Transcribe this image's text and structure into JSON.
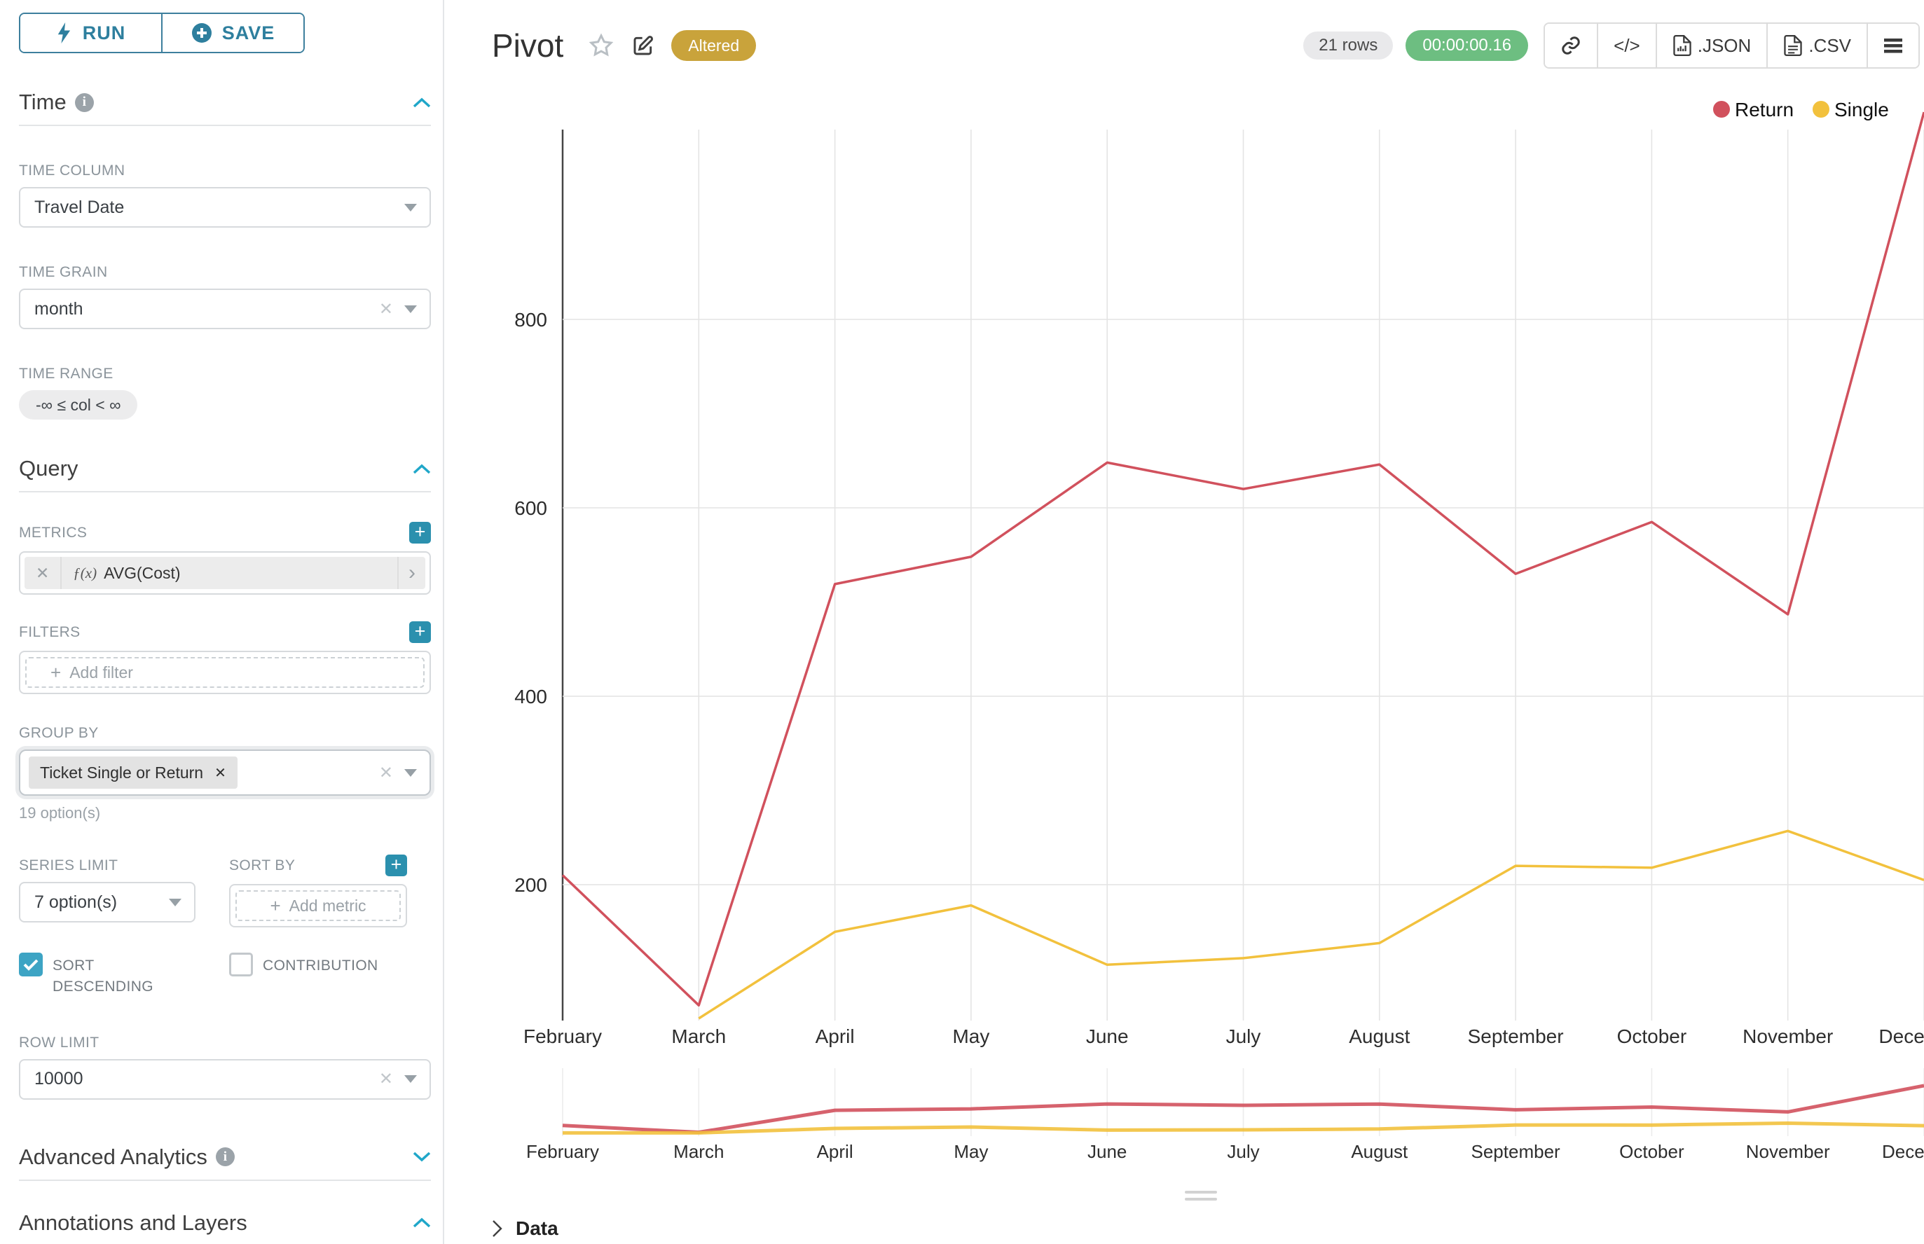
{
  "colors": {
    "accent_teal": "#2b90ae",
    "button_teal": "#2e7f9e",
    "chevron_teal": "#20a7c9",
    "badge_gold": "#c9a33b",
    "badge_green": "#6dbe81",
    "return_red": "#d1515d",
    "single_yellow": "#f2c13d"
  },
  "icons": {
    "plus": "+",
    "close": "✕",
    "code_glyph": "</>"
  },
  "sidebar": {
    "run_label": "RUN",
    "save_label": "SAVE",
    "time": {
      "title": "Time",
      "column_label": "TIME COLUMN",
      "column_value": "Travel Date",
      "grain_label": "TIME GRAIN",
      "grain_value": "month",
      "range_label": "TIME RANGE",
      "range_value": "-∞ ≤ col < ∞"
    },
    "query": {
      "title": "Query",
      "metrics_label": "METRICS",
      "metric_fx": "ƒ(x)",
      "metric_value": "AVG(Cost)",
      "filters_label": "FILTERS",
      "add_filter": "Add filter",
      "group_by_label": "GROUP BY",
      "group_by_chip": "Ticket Single or Return",
      "group_by_hint": "19 option(s)",
      "series_limit_label": "SERIES LIMIT",
      "series_limit_value": "7 option(s)",
      "sort_by_label": "SORT BY",
      "add_metric": "Add metric",
      "sort_descending_label": "SORT DESCENDING",
      "sort_descending_checked": true,
      "contribution_label": "CONTRIBUTION",
      "contribution_checked": false,
      "row_limit_label": "ROW LIMIT",
      "row_limit_value": "10000"
    },
    "advanced_title": "Advanced Analytics",
    "annotations_title": "Annotations and Layers"
  },
  "header": {
    "title": "Pivot",
    "altered_badge": "Altered",
    "rows_badge": "21 rows",
    "duration_badge": "00:00:00.16",
    "export_json": ".JSON",
    "export_csv": ".CSV"
  },
  "south": {
    "data_label": "Data"
  },
  "chart_data": {
    "type": "line",
    "title": "",
    "xlabel": "",
    "ylabel": "",
    "categories": [
      "February",
      "March",
      "April",
      "May",
      "June",
      "July",
      "August",
      "September",
      "October",
      "November",
      "December"
    ],
    "series": [
      {
        "name": "Return",
        "color": "#d1515d",
        "values": [
          210,
          72,
          519,
          548,
          648,
          620,
          646,
          530,
          585,
          487,
          1020
        ]
      },
      {
        "name": "Single",
        "color": "#f2c13d",
        "values": [
          null,
          58,
          150,
          178,
          115,
          122,
          138,
          220,
          218,
          257,
          205
        ]
      }
    ],
    "y_ticks": [
      200,
      400,
      600,
      800
    ],
    "ylim": [
      55,
      1030
    ],
    "grid": true,
    "legend_position": "top-right",
    "has_mini_brush_chart": true
  }
}
